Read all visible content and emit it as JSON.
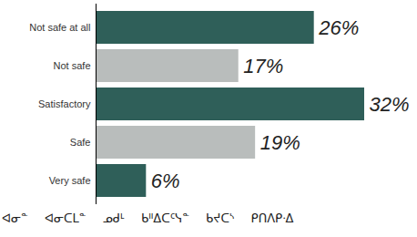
{
  "chart_data": {
    "type": "bar",
    "orientation": "horizontal",
    "caption": "ᐊᓂᓐ ᐊᓂᑕᒪᓐ ᓄᑯᒻ ᑲᐦᐃᑕᑦᓭᓐ ᑲᔪᑕᔅ ᑭᑎᐱᑭᐧᐃ",
    "categories": [
      "Not safe at all",
      "Not safe",
      "Satisfactory",
      "Safe",
      "Very safe"
    ],
    "values": [
      26,
      17,
      32,
      19,
      6
    ],
    "value_labels": [
      "26%",
      "17%",
      "32%",
      "19%",
      "6%"
    ],
    "colors": [
      "#2f5f59",
      "#b9bdbc",
      "#2f5f59",
      "#b9bdbc",
      "#2f5f59"
    ],
    "xlim": [
      0,
      32
    ],
    "xticks": [],
    "data_labels": true,
    "tick_labels": "y",
    "grid": false
  }
}
